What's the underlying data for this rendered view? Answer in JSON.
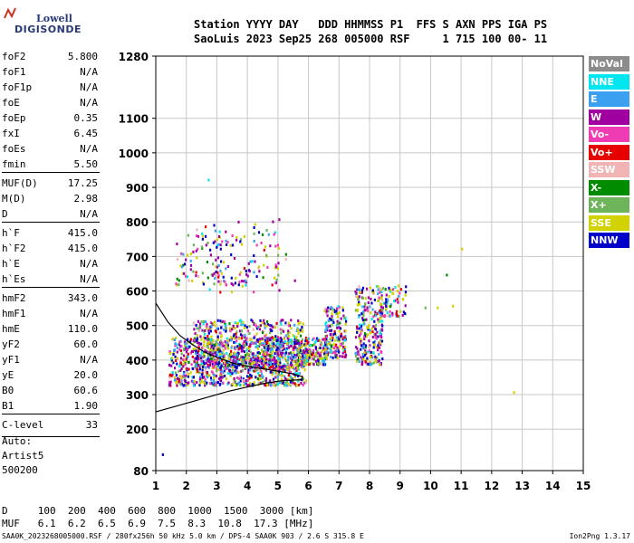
{
  "logo": {
    "line1": "Lowell",
    "line2": "DIGISONDE"
  },
  "header": {
    "line1": "Station YYYY DAY   DDD HHMMSS P1  FFS S AXN PPS IGA PS",
    "line2": "SaoLuis 2023 Sep25 268 005000 RSF     1 715 100 00- 11"
  },
  "params": [
    {
      "name": "foF2",
      "value": "5.800"
    },
    {
      "name": "foF1",
      "value": "N/A"
    },
    {
      "name": "foF1p",
      "value": "N/A"
    },
    {
      "name": "foE",
      "value": "N/A"
    },
    {
      "name": "foEp",
      "value": "0.35"
    },
    {
      "name": "fxI",
      "value": "6.45"
    },
    {
      "name": "foEs",
      "value": "N/A"
    },
    {
      "name": "fmin",
      "value": "5.50"
    },
    {
      "name": "MUF(D)",
      "value": "17.25"
    },
    {
      "name": "M(D)",
      "value": "2.98"
    },
    {
      "name": "D",
      "value": "N/A"
    },
    {
      "name": "h`F",
      "value": "415.0"
    },
    {
      "name": "h`F2",
      "value": "415.0"
    },
    {
      "name": "h`E",
      "value": "N/A"
    },
    {
      "name": "h`Es",
      "value": "N/A"
    },
    {
      "name": "hmF2",
      "value": "343.0"
    },
    {
      "name": "hmF1",
      "value": "N/A"
    },
    {
      "name": "hmE",
      "value": "110.0"
    },
    {
      "name": "yF2",
      "value": "60.0"
    },
    {
      "name": "yF1",
      "value": "N/A"
    },
    {
      "name": "yE",
      "value": "20.0"
    },
    {
      "name": "B0",
      "value": "60.6"
    },
    {
      "name": "B1",
      "value": "1.90"
    },
    {
      "name": "C-level",
      "value": "33"
    }
  ],
  "auto": {
    "line1": "Auto:",
    "line2": "Artist5",
    "line3": "500200"
  },
  "muf_table": {
    "d_row": "D     100  200  400  600  800  1000  1500  3000 [km]",
    "muf_row": "MUF   6.1  6.2  6.5  6.9  7.5  8.3  10.8  17.3 [MHz]"
  },
  "footer": {
    "left": "SAA0K_2023268005000.RSF / 280fx256h 50 kHz 5.0 km / DPS-4 SAA0K 903 / 2.6 S 315.8 E",
    "right": "Ion2Png 1.3.17"
  },
  "legend": [
    {
      "label": "NoVal",
      "color": "#8c8c8c"
    },
    {
      "label": "NNE",
      "color": "#00e6f0"
    },
    {
      "label": "E",
      "color": "#3ca0f0"
    },
    {
      "label": "W",
      "color": "#a000a0"
    },
    {
      "label": "Vo-",
      "color": "#f03cb4"
    },
    {
      "label": "Vo+",
      "color": "#e60000"
    },
    {
      "label": "SSW",
      "color": "#f0b4b4"
    },
    {
      "label": "X-",
      "color": "#008c00"
    },
    {
      "label": "X+",
      "color": "#6eb45a"
    },
    {
      "label": "SSE",
      "color": "#d2d200"
    },
    {
      "label": "NNW",
      "color": "#0000c8"
    }
  ],
  "chart_data": {
    "type": "scatter",
    "x_ticks": [
      1,
      2,
      3,
      4,
      5,
      6,
      7,
      8,
      9,
      10,
      11,
      12,
      13,
      14,
      15
    ],
    "y_ticks": [
      80,
      200,
      300,
      400,
      500,
      600,
      700,
      800,
      900,
      1000,
      1100,
      1280
    ],
    "xlim": [
      1,
      15
    ],
    "ylim": [
      80,
      1280
    ],
    "grid": true,
    "echo_clusters": [
      {
        "x": [
          1.4,
          5.9
        ],
        "y": [
          330,
          470
        ],
        "density": 900
      },
      {
        "x": [
          2.2,
          5.8
        ],
        "y": [
          380,
          520
        ],
        "density": 700
      },
      {
        "x": [
          5.8,
          6.6
        ],
        "y": [
          390,
          470
        ],
        "density": 140
      },
      {
        "x": [
          6.5,
          7.2
        ],
        "y": [
          410,
          560
        ],
        "density": 180
      },
      {
        "x": [
          7.5,
          8.4
        ],
        "y": [
          390,
          620
        ],
        "density": 260
      },
      {
        "x": [
          8.3,
          9.2
        ],
        "y": [
          530,
          620
        ],
        "density": 80
      },
      {
        "x": [
          1.6,
          5.0
        ],
        "y": [
          620,
          780
        ],
        "density": 140
      },
      {
        "x": [
          2.3,
          5.6
        ],
        "y": [
          600,
          820
        ],
        "density": 50
      }
    ],
    "sparse_points": [
      {
        "x": 1.2,
        "y": 130,
        "c": "#0000c8"
      },
      {
        "x": 2.7,
        "y": 925,
        "c": "#00e6f0"
      },
      {
        "x": 10.2,
        "y": 555,
        "c": "#d2d200"
      },
      {
        "x": 10.7,
        "y": 560,
        "c": "#d2d200"
      },
      {
        "x": 10.5,
        "y": 650,
        "c": "#008c00"
      },
      {
        "x": 11.0,
        "y": 725,
        "c": "#d2d200"
      },
      {
        "x": 12.7,
        "y": 310,
        "c": "#d2d200"
      },
      {
        "x": 9.8,
        "y": 555,
        "c": "#6eb45a"
      }
    ],
    "profile_curve": [
      [
        1.0,
        250
      ],
      [
        1.6,
        265
      ],
      [
        2.2,
        280
      ],
      [
        2.8,
        295
      ],
      [
        3.4,
        310
      ],
      [
        4.0,
        322
      ],
      [
        4.6,
        333
      ],
      [
        5.1,
        340
      ],
      [
        5.5,
        342
      ],
      [
        5.8,
        343
      ],
      [
        5.8,
        352
      ],
      [
        5.5,
        360
      ],
      [
        5.0,
        368
      ],
      [
        4.5,
        375
      ],
      [
        4.0,
        382
      ],
      [
        3.5,
        392
      ],
      [
        3.0,
        408
      ],
      [
        2.6,
        423
      ],
      [
        2.2,
        445
      ],
      [
        1.8,
        470
      ],
      [
        1.4,
        510
      ],
      [
        1.0,
        565
      ]
    ]
  }
}
